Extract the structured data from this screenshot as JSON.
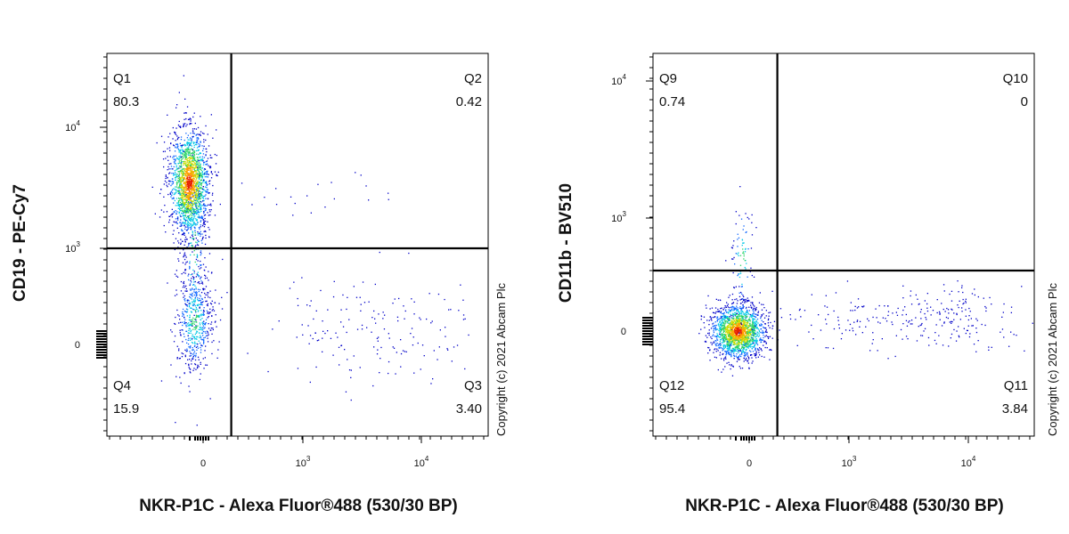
{
  "chart_data": [
    {
      "type": "scatter",
      "subtype": "flow-cytometry-density-dot-plot",
      "xlabel": "NKR-P1C - Alexa Fluor®488 (530/30 BP)",
      "ylabel": "CD19 - PE-Cy7",
      "x_scale": "biexponential",
      "y_scale": "biexponential",
      "x_ticks": [
        {
          "label": "0",
          "value": 0
        },
        {
          "label": "10",
          "exp": "3",
          "value": 1000
        },
        {
          "label": "10",
          "exp": "4",
          "value": 10000
        }
      ],
      "y_ticks": [
        {
          "label": "0",
          "value": 0
        },
        {
          "label": "10",
          "exp": "3",
          "value": 1000
        },
        {
          "label": "10",
          "exp": "4",
          "value": 10000
        }
      ],
      "gates": {
        "x": 500,
        "y": 900
      },
      "quadrants": [
        {
          "name": "Q1",
          "position": "top-left",
          "value": "80.3"
        },
        {
          "name": "Q2",
          "position": "top-right",
          "value": "0.42"
        },
        {
          "name": "Q3",
          "position": "bottom-right",
          "value": "3.40"
        },
        {
          "name": "Q4",
          "position": "bottom-left",
          "value": "15.9"
        }
      ],
      "populations": [
        {
          "description": "CD19+ NKR-P1C- cluster",
          "x_center": -60,
          "y_center": 3200,
          "share_percent": 80.3
        },
        {
          "description": "CD19- NKR-P1C- cluster",
          "x_center": -60,
          "y_center": 20,
          "share_percent": 15.9
        },
        {
          "description": "NKR-P1C+ CD19- scatter",
          "x_center": 6000,
          "y_center": 20,
          "share_percent": 3.4
        }
      ],
      "copyright": "Copyright (c) 2021 Abcam Plc"
    },
    {
      "type": "scatter",
      "subtype": "flow-cytometry-density-dot-plot",
      "xlabel": "NKR-P1C - Alexa Fluor®488 (530/30 BP)",
      "ylabel": "CD11b - BV510",
      "x_scale": "biexponential",
      "y_scale": "biexponential",
      "x_ticks": [
        {
          "label": "0",
          "value": 0
        },
        {
          "label": "10",
          "exp": "3",
          "value": 1000
        },
        {
          "label": "10",
          "exp": "4",
          "value": 10000
        }
      ],
      "y_ticks": [
        {
          "label": "0",
          "value": 0
        },
        {
          "label": "10",
          "exp": "3",
          "value": 1000
        },
        {
          "label": "10",
          "exp": "4",
          "value": 10000
        }
      ],
      "gates": {
        "x": 500,
        "y": 400
      },
      "quadrants": [
        {
          "name": "Q9",
          "position": "top-left",
          "value": "0.74"
        },
        {
          "name": "Q10",
          "position": "top-right",
          "value": "0"
        },
        {
          "name": "Q11",
          "position": "bottom-right",
          "value": "3.84"
        },
        {
          "name": "Q12",
          "position": "bottom-left",
          "value": "95.4"
        }
      ],
      "populations": [
        {
          "description": "CD11b- NKR-P1C- cluster",
          "x_center": -60,
          "y_center": 0,
          "share_percent": 95.4
        },
        {
          "description": "NKR-P1C+ CD11b- scatter",
          "x_center": 6000,
          "y_center": 50,
          "share_percent": 3.84
        }
      ],
      "copyright": "Copyright (c) 2021 Abcam Plc"
    }
  ],
  "colors": {
    "density": [
      "#0000c8",
      "#0a64ff",
      "#00c8e6",
      "#28d264",
      "#c8dc00",
      "#ffa000",
      "#e61e00"
    ],
    "gate_line": "#000000",
    "axis": "#000000"
  }
}
